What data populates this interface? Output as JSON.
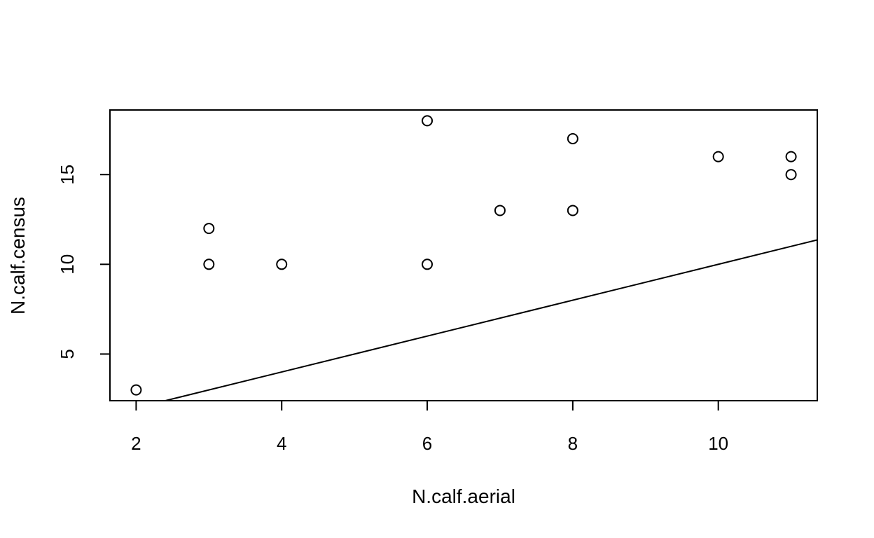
{
  "chart_data": {
    "type": "scatter",
    "title": "",
    "xlabel": "N.calf.aerial",
    "ylabel": "N.calf.census",
    "xlim": [
      1.64,
      11.36
    ],
    "ylim": [
      2.4,
      18.6
    ],
    "xticks": [
      2,
      4,
      6,
      8,
      10
    ],
    "yticks": [
      5,
      10,
      15
    ],
    "grid": false,
    "points": [
      {
        "x": 2,
        "y": 3
      },
      {
        "x": 3,
        "y": 12
      },
      {
        "x": 3,
        "y": 10
      },
      {
        "x": 4,
        "y": 10
      },
      {
        "x": 6,
        "y": 18
      },
      {
        "x": 6,
        "y": 10
      },
      {
        "x": 7,
        "y": 13
      },
      {
        "x": 8,
        "y": 17
      },
      {
        "x": 8,
        "y": 13
      },
      {
        "x": 10,
        "y": 16
      },
      {
        "x": 11,
        "y": 16
      },
      {
        "x": 11,
        "y": 15
      }
    ],
    "reference_line": {
      "intercept": 0,
      "slope": 1
    }
  }
}
